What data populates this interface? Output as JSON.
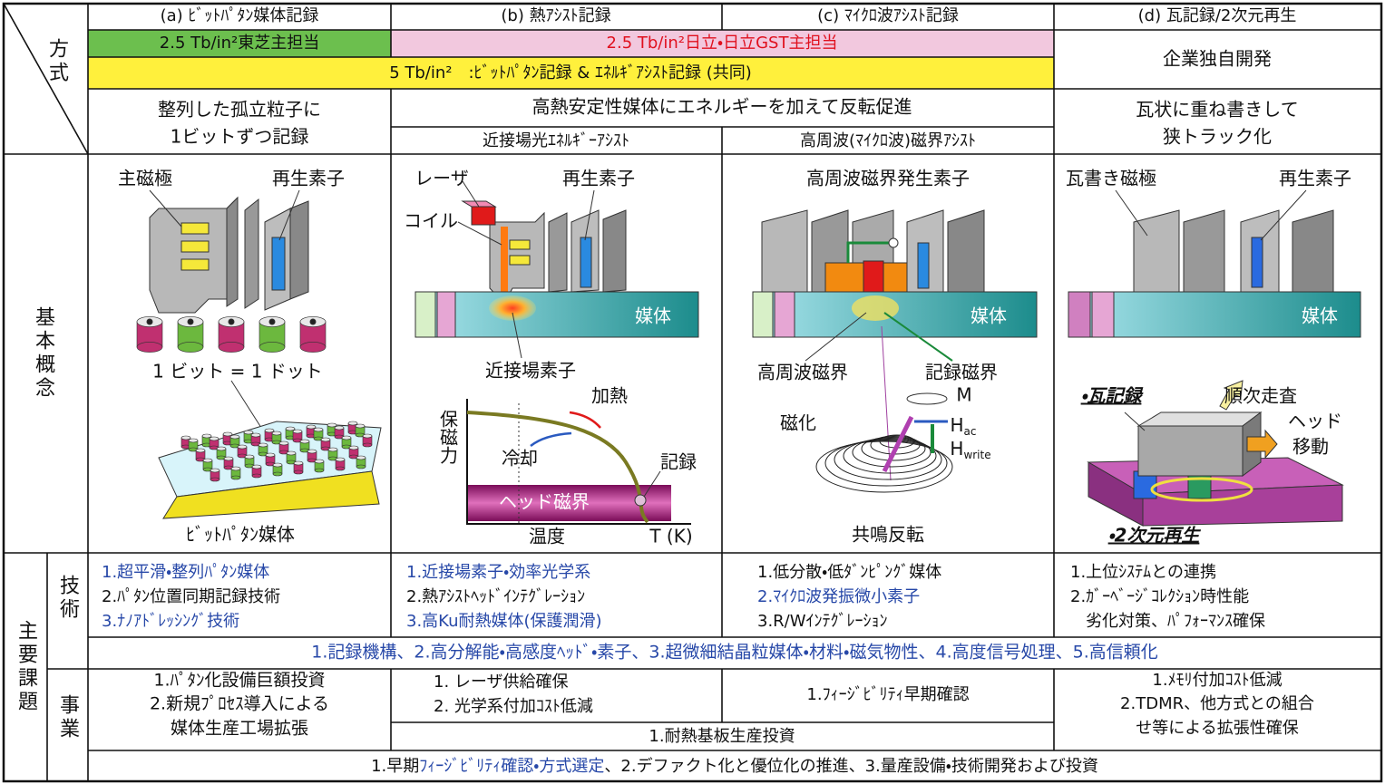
{
  "header": {
    "method": "方式",
    "concept": "基本概念",
    "issues": "主要課題",
    "tech": "技術",
    "business": "事業"
  },
  "columns": [
    "(a) ﾋﾞｯﾄﾊﾟﾀﾝ媒体記録",
    "(b) 熱ｱｼｽﾄ記録",
    "(c) ﾏｲｸﾛ波ｱｼｽﾄ記録",
    "(d) 瓦記録/2次元再生"
  ],
  "methods": {
    "toshiba": "2.5 Tb/in²東芝主担当",
    "hitachi": "2.5 Tb/in²日立・日立GST主担当",
    "joint": "5 Tb/in²　:ﾋﾞｯﾄﾊﾟﾀﾝ記録 & ｴﾈﾙｷﾞｱｼｽﾄ記録 (共同)",
    "independent": "企業独自開発"
  },
  "principles": {
    "a": [
      "整列した孤立粒子に",
      "1ビットずつ記録"
    ],
    "bc": "高熱安定性媒体にエネルギーを加えて反転促進",
    "b": "近接場光ｴﾈﾙｷﾞｰｱｼｽﾄ",
    "c": "高周波(ﾏｲｸﾛ波)磁界ｱｼｽﾄ",
    "d": [
      "瓦状に重ね書きして",
      "狭トラック化"
    ]
  },
  "concepts": {
    "a": {
      "main_pole": "主磁極",
      "reader": "再生素子",
      "bit_dot": "1 ビット = 1 ドット",
      "medium": "ﾋﾞｯﾄﾊﾟﾀﾝ媒体"
    },
    "b": {
      "laser": "レーザ",
      "reader": "再生素子",
      "coil": "コイル",
      "medium": "媒体",
      "nf_element": "近接場素子",
      "heating": "加熱",
      "coercivity": "保磁力",
      "cooling": "冷却",
      "record": "記録",
      "head_field": "ヘッド磁界",
      "temperature": "温度",
      "t_unit": "T (K)"
    },
    "c": {
      "generator": "高周波磁界発生素子",
      "medium": "媒体",
      "hf_field": "高周波磁界",
      "write_field": "記録磁界",
      "m": "M",
      "magnetization": "磁化",
      "h_ac": [
        "H",
        "ac"
      ],
      "h_write": [
        "H",
        "write"
      ],
      "resonance": "共鳴反転"
    },
    "d": {
      "pole": "瓦書き磁極",
      "reader": "再生素子",
      "medium": "媒体",
      "shingled": "・瓦記録",
      "scan": "順次走査",
      "head_move": [
        "ヘッド",
        "移動"
      ],
      "two_d": "・2次元再生"
    }
  },
  "tech": {
    "a": [
      "1.超平滑・整列ﾊﾟﾀﾝ媒体",
      "2.ﾊﾟﾀﾝ位置同期記録技術",
      "3.ﾅﾉｱﾄﾞﾚｯｼﾝｸﾞ技術"
    ],
    "b": [
      "1.近接場素子・効率光学系",
      "2.熱ｱｼｽﾄﾍｯﾄﾞｲﾝﾃｸﾞﾚｰｼｮﾝ",
      "3.高Ku耐熱媒体(保護潤滑)"
    ],
    "c": [
      "1.低分散・低ﾀﾞﾝﾋﾟﾝｸﾞ媒体",
      "2.ﾏｲｸﾛ波発振微小素子",
      "3.R/Wｲﾝﾃｸﾞﾚｰｼｮﾝ"
    ],
    "d": [
      "1.上位ｼｽﾃﾑとの連携",
      "2.ｶﾞｰﾍﾞｰｼﾞｺﾚｸｼｮﾝ時性能",
      "劣化対策、ﾊﾟﾌｫｰﾏﾝｽ確保"
    ],
    "common": "1.記録機構、2.高分解能・高感度ﾍｯﾄﾞ・素子、3.超微細結晶粒媒体・材料・磁気物性、4.高度信号処理、5.高信頼化"
  },
  "business": {
    "a": [
      "1.ﾊﾟﾀﾝ化設備巨額投資",
      "2.新規ﾌﾟﾛｾｽ導入による",
      "媒体生産工場拡張"
    ],
    "b": [
      "1. レーザ供給確保",
      "2. 光学系付加ｺｽﾄ低減"
    ],
    "c": "1.ﾌｨｰｼﾞﾋﾞﾘﾃｨ早期確認",
    "bc": "1.耐熱基板生産投資",
    "d": [
      "1.ﾒﾓﾘ付加ｺｽﾄ低減",
      "2.TDMR、他方式との組合",
      "せ等による拡張性確保"
    ],
    "common": [
      "1.早期",
      "ﾌｨｰｼﾞﾋﾞﾘﾃｨ確認・方式選定",
      "、2.デファクト化と優位化の推進、3.量産設備・技術開発および投資"
    ]
  }
}
